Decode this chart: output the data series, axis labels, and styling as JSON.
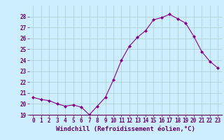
{
  "x": [
    0,
    1,
    2,
    3,
    4,
    5,
    6,
    7,
    8,
    9,
    10,
    11,
    12,
    13,
    14,
    15,
    16,
    17,
    18,
    19,
    20,
    21,
    22,
    23
  ],
  "y": [
    20.6,
    20.4,
    20.3,
    20.0,
    19.8,
    19.9,
    19.7,
    19.0,
    19.8,
    20.6,
    22.2,
    24.0,
    25.3,
    26.1,
    26.7,
    27.7,
    27.9,
    28.2,
    27.8,
    27.4,
    26.2,
    24.8,
    23.9,
    23.3
  ],
  "line_color": "#880088",
  "marker": "D",
  "markersize": 2.0,
  "linewidth": 0.8,
  "xlabel": "Windchill (Refroidissement éolien,°C)",
  "xlabel_fontsize": 6.5,
  "xlabel_color": "#660066",
  "tick_color": "#660066",
  "background_color": "#cceeff",
  "grid_color": "#aacccc",
  "ylim": [
    19,
    29
  ],
  "xlim": [
    -0.5,
    23.5
  ],
  "yticks": [
    19,
    20,
    21,
    22,
    23,
    24,
    25,
    26,
    27,
    28
  ],
  "xticks": [
    0,
    1,
    2,
    3,
    4,
    5,
    6,
    7,
    8,
    9,
    10,
    11,
    12,
    13,
    14,
    15,
    16,
    17,
    18,
    19,
    20,
    21,
    22,
    23
  ],
  "tick_fontsize": 5.5
}
